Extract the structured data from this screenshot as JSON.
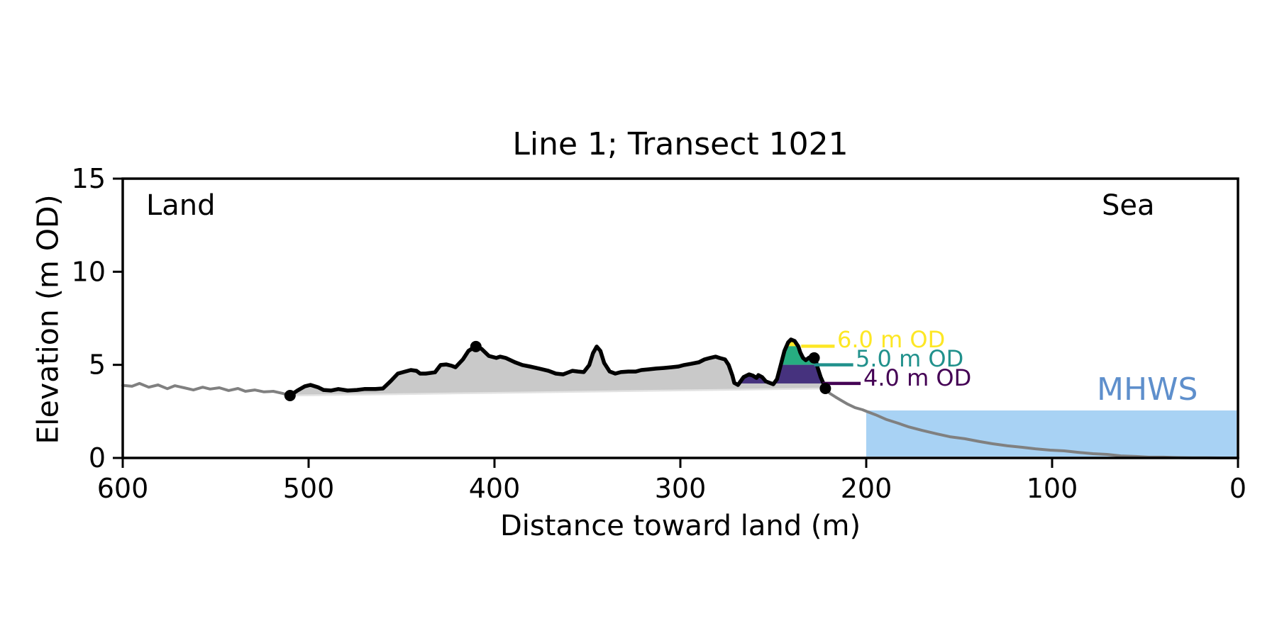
{
  "chart_data": {
    "type": "line",
    "title": "Line 1; Transect 1021",
    "xlabel": "Distance toward land (m)",
    "ylabel": "Elevation (m OD)",
    "xlim": [
      600,
      0
    ],
    "ylim": [
      0,
      15
    ],
    "xticks": [
      600,
      500,
      400,
      300,
      200,
      100,
      0
    ],
    "yticks": [
      0,
      5,
      10,
      15
    ],
    "grid": false,
    "x_axis_reversed": true,
    "corner_labels": {
      "left": "Land",
      "right": "Sea"
    },
    "mhws": {
      "label": "MHWS",
      "level_m_od": 2.55,
      "extent_m": 200,
      "fill_color": "#a8d2f4",
      "text_color": "#5e8fcc"
    },
    "series": {
      "landward": {
        "name": "landward-terrain",
        "color": "#808080",
        "points": [
          [
            600,
            3.9
          ],
          [
            595,
            3.85
          ],
          [
            591,
            4.0
          ],
          [
            586,
            3.8
          ],
          [
            581,
            3.92
          ],
          [
            576,
            3.72
          ],
          [
            572,
            3.88
          ],
          [
            567,
            3.77
          ],
          [
            562,
            3.65
          ],
          [
            557,
            3.8
          ],
          [
            553,
            3.7
          ],
          [
            548,
            3.77
          ],
          [
            543,
            3.62
          ],
          [
            538,
            3.73
          ],
          [
            534,
            3.58
          ],
          [
            529,
            3.65
          ],
          [
            524,
            3.55
          ],
          [
            519,
            3.58
          ],
          [
            514,
            3.47
          ],
          [
            510,
            3.35
          ]
        ]
      },
      "profile": {
        "name": "beach-profile",
        "color": "#000000",
        "fill_color": "#c9c9c9",
        "points": [
          [
            510,
            3.35
          ],
          [
            506,
            3.62
          ],
          [
            502,
            3.85
          ],
          [
            499,
            3.92
          ],
          [
            495,
            3.8
          ],
          [
            492,
            3.65
          ],
          [
            488,
            3.62
          ],
          [
            484,
            3.7
          ],
          [
            479,
            3.62
          ],
          [
            474,
            3.65
          ],
          [
            470,
            3.7
          ],
          [
            464,
            3.7
          ],
          [
            460,
            3.73
          ],
          [
            456,
            4.11
          ],
          [
            452,
            4.53
          ],
          [
            448,
            4.64
          ],
          [
            445,
            4.72
          ],
          [
            442,
            4.68
          ],
          [
            440,
            4.53
          ],
          [
            437,
            4.53
          ],
          [
            432,
            4.6
          ],
          [
            429,
            4.99
          ],
          [
            426,
            5.02
          ],
          [
            423,
            4.95
          ],
          [
            421,
            4.87
          ],
          [
            417,
            5.29
          ],
          [
            414,
            5.75
          ],
          [
            411,
            5.94
          ],
          [
            410,
            5.98
          ],
          [
            407,
            5.86
          ],
          [
            403,
            5.48
          ],
          [
            399,
            5.37
          ],
          [
            397,
            5.44
          ],
          [
            394,
            5.37
          ],
          [
            389,
            5.14
          ],
          [
            385,
            4.99
          ],
          [
            381,
            4.91
          ],
          [
            376,
            4.8
          ],
          [
            371,
            4.68
          ],
          [
            367,
            4.53
          ],
          [
            363,
            4.49
          ],
          [
            361,
            4.57
          ],
          [
            358,
            4.68
          ],
          [
            355,
            4.64
          ],
          [
            352,
            4.61
          ],
          [
            349,
            4.99
          ],
          [
            347,
            5.63
          ],
          [
            345,
            5.98
          ],
          [
            343,
            5.75
          ],
          [
            341,
            5.1
          ],
          [
            338,
            4.64
          ],
          [
            335,
            4.53
          ],
          [
            332,
            4.61
          ],
          [
            328,
            4.64
          ],
          [
            324,
            4.64
          ],
          [
            321,
            4.72
          ],
          [
            317,
            4.76
          ],
          [
            313,
            4.8
          ],
          [
            309,
            4.83
          ],
          [
            305,
            4.87
          ],
          [
            301,
            4.91
          ],
          [
            298,
            4.99
          ],
          [
            294,
            5.06
          ],
          [
            290,
            5.14
          ],
          [
            287,
            5.29
          ],
          [
            284,
            5.37
          ],
          [
            281,
            5.44
          ],
          [
            279,
            5.37
          ],
          [
            276,
            5.29
          ],
          [
            274,
            4.99
          ],
          [
            272,
            4.42
          ],
          [
            271,
            4.03
          ],
          [
            269,
            3.92
          ],
          [
            266,
            4.34
          ],
          [
            263,
            4.49
          ],
          [
            261,
            4.42
          ],
          [
            259,
            4.3
          ],
          [
            258,
            4.45
          ],
          [
            256,
            4.34
          ],
          [
            254,
            4.11
          ],
          [
            252,
            4.03
          ],
          [
            250,
            3.96
          ],
          [
            248,
            4.23
          ],
          [
            246,
            4.99
          ],
          [
            244,
            5.75
          ],
          [
            242,
            6.21
          ],
          [
            240.5,
            6.36
          ],
          [
            238.5,
            6.28
          ],
          [
            236.5,
            5.98
          ],
          [
            235.5,
            5.67
          ],
          [
            234,
            5.37
          ],
          [
            232.5,
            5.25
          ],
          [
            231,
            5.37
          ],
          [
            229.5,
            5.44
          ],
          [
            228,
            5.37
          ],
          [
            227,
            5.18
          ],
          [
            226,
            4.8
          ],
          [
            224.5,
            4.34
          ],
          [
            223,
            4.0
          ],
          [
            222,
            3.73
          ]
        ]
      },
      "seaward": {
        "name": "seaward-terrain",
        "color": "#808080",
        "points": [
          [
            222,
            3.73
          ],
          [
            219.5,
            3.46
          ],
          [
            216.5,
            3.27
          ],
          [
            214,
            3.12
          ],
          [
            210,
            2.89
          ],
          [
            206,
            2.7
          ],
          [
            202,
            2.59
          ],
          [
            200,
            2.51
          ],
          [
            195,
            2.32
          ],
          [
            189,
            2.06
          ],
          [
            183,
            1.87
          ],
          [
            177.5,
            1.68
          ],
          [
            170,
            1.48
          ],
          [
            162,
            1.29
          ],
          [
            155,
            1.14
          ],
          [
            147,
            1.03
          ],
          [
            139,
            0.88
          ],
          [
            132,
            0.76
          ],
          [
            124,
            0.65
          ],
          [
            116,
            0.57
          ],
          [
            109,
            0.49
          ],
          [
            101,
            0.42
          ],
          [
            93.5,
            0.38
          ],
          [
            86,
            0.3
          ],
          [
            78,
            0.23
          ],
          [
            70.5,
            0.19
          ],
          [
            63,
            0.11
          ],
          [
            55,
            0.08
          ],
          [
            48,
            0.04
          ],
          [
            40,
            0.04
          ],
          [
            32,
            0.02
          ],
          [
            25,
            0.01
          ],
          [
            17,
            0.01
          ],
          [
            9,
            0.0
          ],
          [
            0,
            0.0
          ]
        ]
      }
    },
    "markers": {
      "color": "#000000",
      "points": [
        [
          510,
          3.35
        ],
        [
          410,
          5.98
        ],
        [
          228,
          5.37
        ],
        [
          222,
          3.73
        ]
      ]
    },
    "dune_extent_m": [
      271,
      222
    ],
    "contours": [
      {
        "label": "6.0 m OD",
        "level": 6.0,
        "band_top": 6.6,
        "text_color": "#fde725",
        "line_color": "#fde725",
        "fill_color": "#fde725",
        "leader_m": [
          235,
          217
        ]
      },
      {
        "label": "5.0 m OD",
        "level": 5.0,
        "band_top": 6.0,
        "text_color": "#21918c",
        "line_color": "#21918c",
        "fill_color": "#27ad81",
        "leader_m": [
          228,
          207
        ]
      },
      {
        "label": "4.0 m OD",
        "level": 4.0,
        "band_top": 5.0,
        "text_color": "#440154",
        "line_color": "#440154",
        "fill_color": "#46327e",
        "leader_m": [
          223.5,
          203
        ]
      }
    ]
  }
}
